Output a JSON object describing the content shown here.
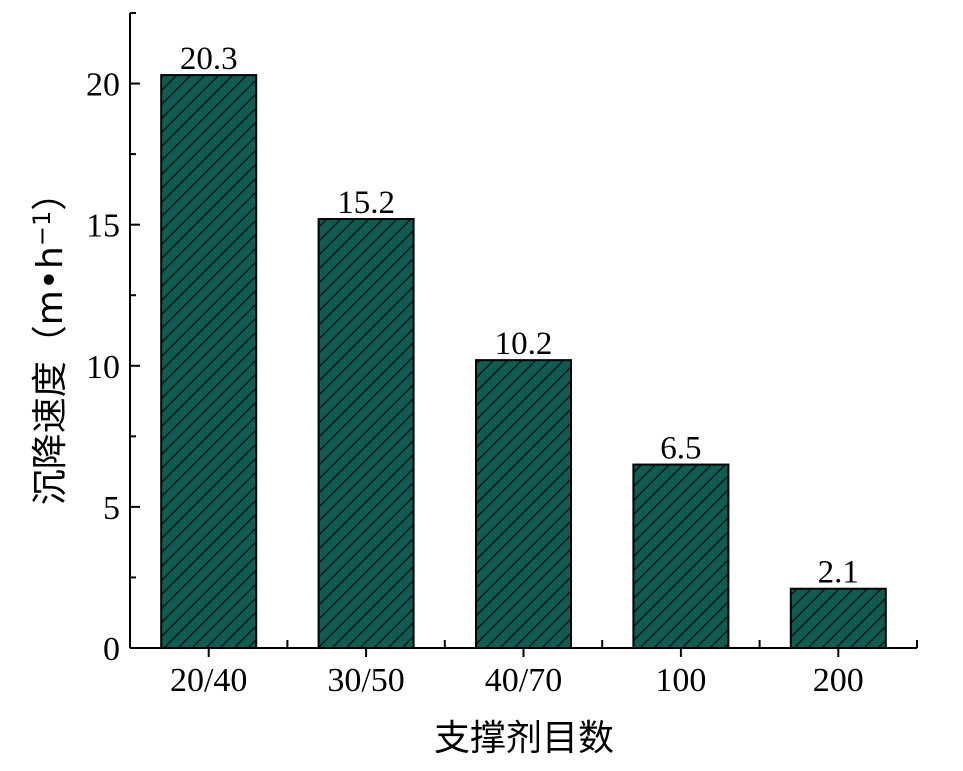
{
  "chart_data": {
    "type": "bar",
    "categories": [
      "20/40",
      "30/50",
      "40/70",
      "100",
      "200"
    ],
    "values": [
      20.3,
      15.2,
      10.2,
      6.5,
      2.1
    ],
    "data_labels": [
      "20.3",
      "15.2",
      "10.2",
      "6.5",
      "2.1"
    ],
    "title": "",
    "xlabel": "支撑剂目数",
    "ylabel": "沉降速度（m•h",
    "ylabel_sup": "−1",
    "ylabel_close": "）",
    "ylim": [
      0,
      22.5
    ],
    "yticks": [
      0,
      5,
      10,
      15,
      20
    ],
    "ytick_labels": [
      "0",
      "5",
      "10",
      "15",
      "20"
    ],
    "grid": false,
    "legend": "none",
    "bar_fill": "hatched diagonal",
    "colors": {
      "bar": "#0f5c52",
      "hatch": "#0a1a18",
      "axis": "#000000"
    }
  }
}
